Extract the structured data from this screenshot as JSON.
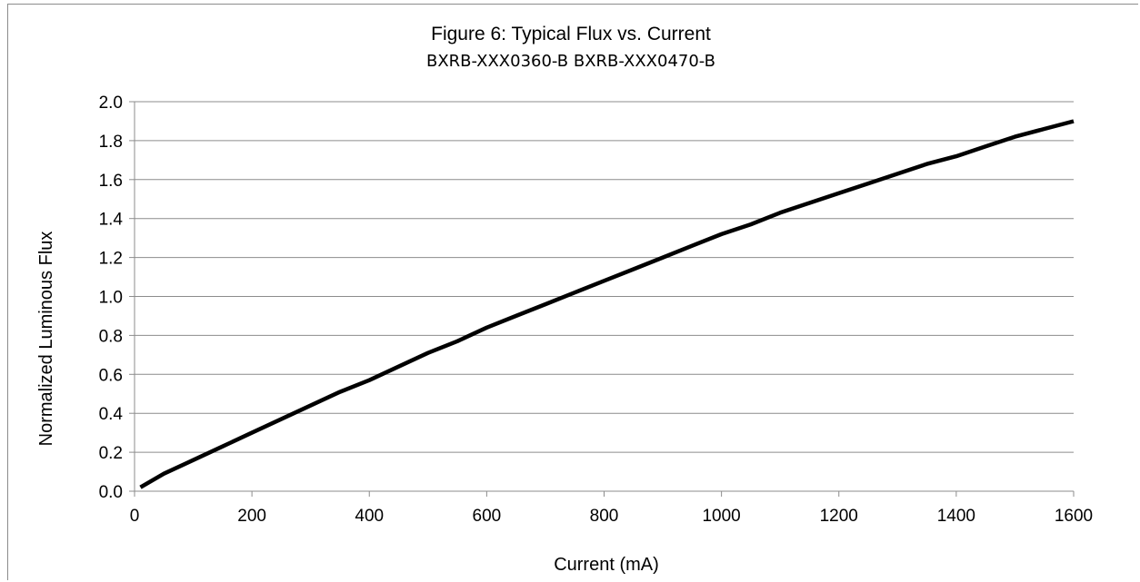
{
  "chart_data": {
    "type": "line",
    "title": "Figure 6:  Typical Flux vs. Current",
    "subtitle": "BXRB-XXX0360-B BXRB-XXX0470-B",
    "xlabel": "Current (mA)",
    "ylabel": "Normalized Luminous Flux",
    "xlim": [
      0,
      1600
    ],
    "ylim": [
      0.0,
      2.0
    ],
    "x_ticks": [
      "0",
      "200",
      "400",
      "600",
      "800",
      "1000",
      "1200",
      "1400",
      "1600"
    ],
    "y_ticks": [
      "0.0",
      "0.2",
      "0.4",
      "0.6",
      "0.8",
      "1.0",
      "1.2",
      "1.4",
      "1.6",
      "1.8",
      "2.0"
    ],
    "grid": "horizontal",
    "series": [
      {
        "color": "#000000",
        "x": [
          10,
          50,
          100,
          150,
          200,
          250,
          300,
          350,
          400,
          450,
          500,
          550,
          600,
          650,
          700,
          750,
          800,
          850,
          900,
          950,
          1000,
          1050,
          1100,
          1150,
          1200,
          1250,
          1300,
          1350,
          1400,
          1450,
          1500,
          1550,
          1600
        ],
        "y": [
          0.02,
          0.09,
          0.16,
          0.23,
          0.3,
          0.37,
          0.44,
          0.51,
          0.57,
          0.64,
          0.71,
          0.77,
          0.84,
          0.9,
          0.96,
          1.02,
          1.08,
          1.14,
          1.2,
          1.26,
          1.32,
          1.37,
          1.43,
          1.48,
          1.53,
          1.58,
          1.63,
          1.68,
          1.72,
          1.77,
          1.82,
          1.86,
          1.9
        ]
      }
    ]
  }
}
